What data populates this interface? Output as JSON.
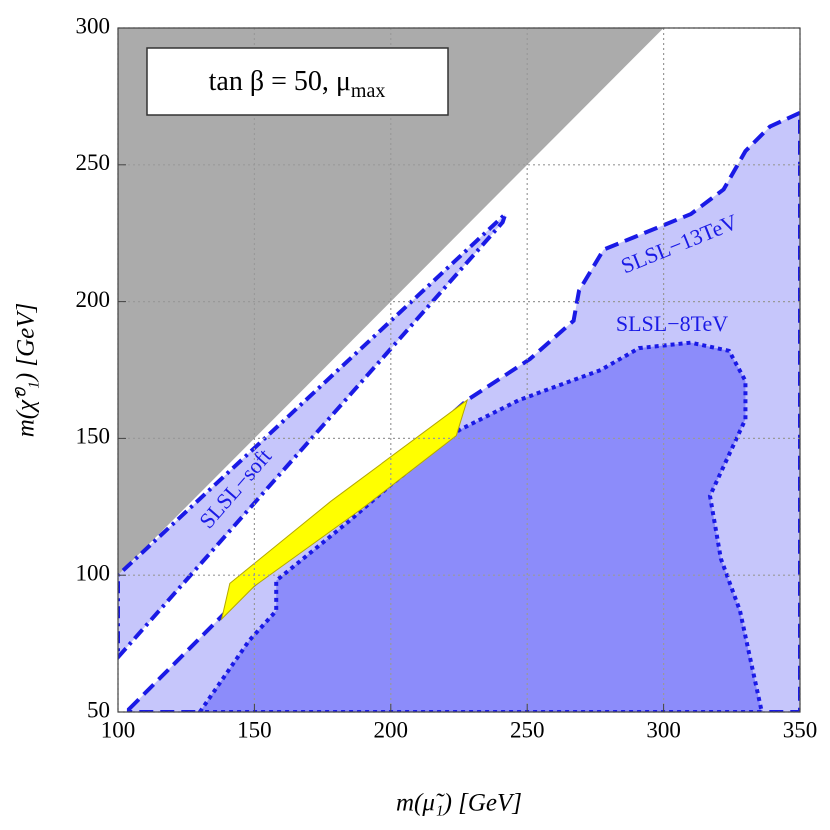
{
  "chart_data": {
    "type": "region",
    "xlabel": "m(μ̃₁) [GeV]",
    "ylabel": "m(χ̃⁰₁) [GeV]",
    "xlim": [
      100,
      350
    ],
    "ylim": [
      50,
      300
    ],
    "xticks": [
      100,
      150,
      200,
      250,
      300,
      350
    ],
    "yticks": [
      50,
      100,
      150,
      200,
      250,
      300
    ],
    "grid": true,
    "box_label": {
      "main": "tan β = 50,  μ",
      "sub": "max"
    },
    "series": [
      {
        "color": "#ababab",
        "x": [
          100,
          300,
          100
        ],
        "y": [
          100,
          300,
          300
        ]
      },
      {
        "name": "SLSL−13TeV",
        "color": "#c6c6fb",
        "linestyle": "dashed",
        "x": [
          104,
          148,
          185,
          228,
          251,
          267,
          269,
          278,
          310,
          322,
          330,
          339,
          350,
          350,
          104
        ],
        "y": [
          51,
          95,
          126,
          164,
          179,
          193,
          204,
          219,
          232,
          241,
          255,
          264,
          269,
          50,
          50
        ]
      },
      {
        "name": "SLSL−soft",
        "color": "#c6c6fb",
        "linestyle": "dashdot",
        "x": [
          100,
          241,
          242,
          100
        ],
        "y": [
          70,
          229,
          232,
          100
        ]
      },
      {
        "name": "SLSL−8TeV",
        "color": "#8c8cfa",
        "linestyle": "dotted",
        "x": [
          130,
          148,
          158,
          158,
          185,
          200,
          225,
          247,
          277,
          291,
          310,
          324,
          330,
          330,
          317,
          321,
          328,
          331,
          336
        ],
        "y": [
          50,
          76,
          87,
          98,
          120,
          133,
          153,
          164,
          175,
          183,
          185,
          182,
          171,
          157,
          129,
          106,
          87,
          73,
          50
        ]
      },
      {
        "color": "#ffff00",
        "linestyle": "solid",
        "x": [
          138,
          141,
          178,
          228,
          224,
          189,
          150
        ],
        "y": [
          84,
          97,
          127,
          164,
          151,
          124,
          96
        ]
      }
    ]
  }
}
